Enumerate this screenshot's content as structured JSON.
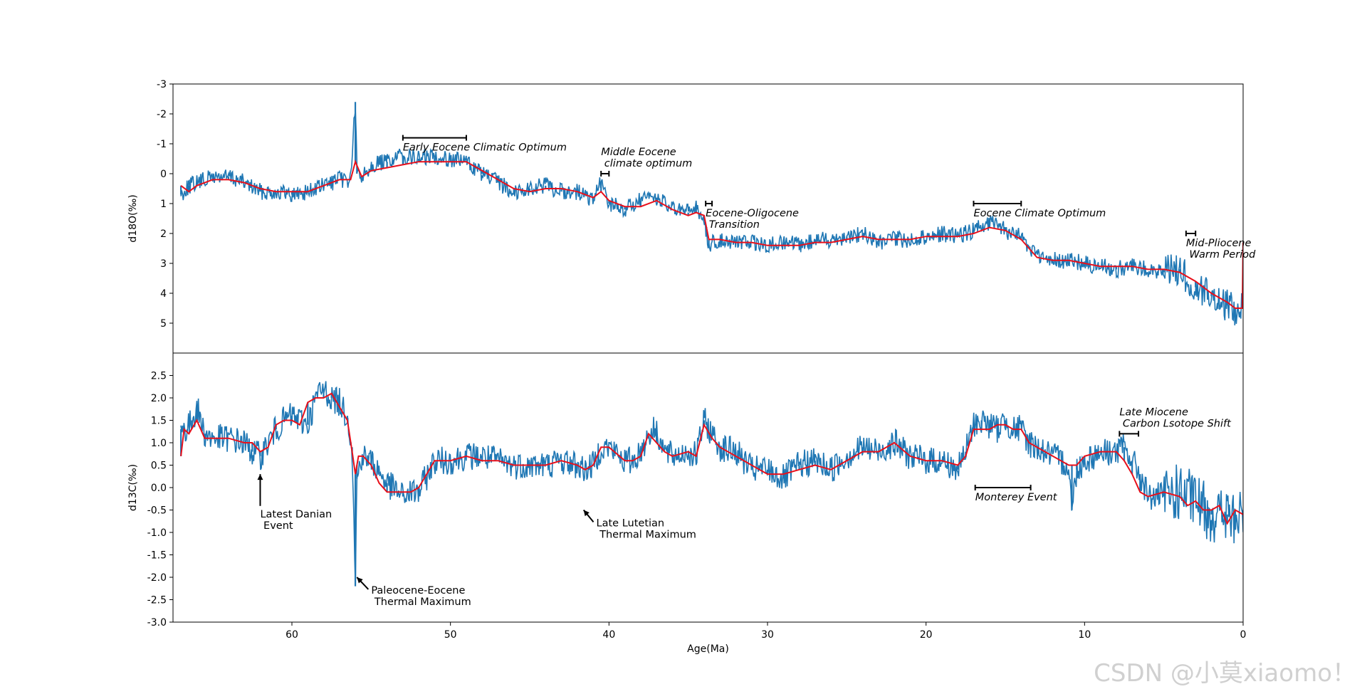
{
  "watermark": "CSDN @小莫xiaomo！",
  "chart_data": [
    {
      "type": "line",
      "ylabel": "d18O(‰)",
      "xlabel": "",
      "xlim": [
        67.5,
        0
      ],
      "ylim": [
        6,
        -3
      ],
      "y_inverted": true,
      "yticks": [
        -3,
        -2,
        -1,
        0,
        1,
        2,
        3,
        4,
        5
      ],
      "ytick_labels": [
        "-3",
        "-2",
        "-1",
        "0",
        "1",
        "2",
        "3",
        "4",
        "5"
      ],
      "colors": {
        "raw": "#1f77b4",
        "smooth": "#e8101b"
      },
      "series": [
        {
          "role": "raw",
          "x": [
            67,
            66.5,
            66,
            65,
            64,
            63,
            62,
            61,
            60,
            59,
            58,
            57,
            56.3,
            56,
            55.9,
            55.6,
            55,
            54,
            53,
            52,
            51,
            50,
            49,
            48,
            47,
            46,
            45,
            44,
            43,
            42,
            41,
            40.5,
            40,
            39,
            38,
            37,
            36,
            35,
            34.5,
            34,
            33.7,
            33,
            32,
            31,
            30,
            29,
            28,
            27,
            26,
            25,
            24,
            23,
            22,
            21,
            20,
            19,
            18,
            17,
            16,
            15,
            14,
            13,
            12,
            11,
            10,
            9,
            8,
            7,
            6,
            5,
            4,
            3,
            2,
            1,
            0.5,
            0
          ],
          "y": [
            0.7,
            0.4,
            0.3,
            0.1,
            0.1,
            0.3,
            0.6,
            0.6,
            0.7,
            0.6,
            0.4,
            0.2,
            0.2,
            -2.4,
            0.0,
            0.1,
            -0.3,
            -0.4,
            -0.6,
            -0.5,
            -0.6,
            -0.5,
            -0.4,
            0.0,
            0.3,
            0.6,
            0.5,
            0.4,
            0.6,
            0.6,
            0.9,
            0.3,
            1.0,
            1.2,
            0.9,
            0.8,
            1.2,
            1.3,
            1.1,
            1.6,
            2.4,
            2.2,
            2.3,
            2.3,
            2.4,
            2.3,
            2.4,
            2.2,
            2.2,
            2.1,
            2.0,
            2.3,
            2.2,
            2.2,
            2.1,
            2.0,
            2.1,
            1.9,
            1.6,
            1.9,
            2.1,
            2.8,
            2.9,
            2.9,
            3.0,
            3.1,
            3.2,
            3.1,
            3.2,
            3.3,
            3.2,
            3.8,
            4.1,
            4.4,
            4.6,
            4.5
          ]
        },
        {
          "role": "smooth",
          "x": [
            67,
            66.5,
            66,
            65,
            64,
            63,
            62,
            61,
            60,
            59,
            58,
            57,
            56.3,
            56,
            55.6,
            55,
            54,
            53,
            52,
            51,
            50,
            49,
            48,
            47,
            46,
            45,
            44,
            43,
            42,
            41,
            40.5,
            40,
            39,
            38,
            37,
            36,
            35,
            34.5,
            34,
            33.7,
            33,
            32,
            31,
            30,
            29,
            28,
            27,
            26,
            25,
            24,
            23,
            22,
            21,
            20,
            19,
            18,
            17,
            16,
            15,
            14,
            13,
            12,
            11,
            10,
            9,
            8,
            7,
            6,
            5,
            4,
            3,
            2,
            1,
            0.5,
            0.05,
            0
          ],
          "y": [
            0.4,
            0.6,
            0.4,
            0.2,
            0.2,
            0.3,
            0.5,
            0.6,
            0.6,
            0.6,
            0.4,
            0.2,
            0.2,
            -0.4,
            0.1,
            -0.1,
            -0.2,
            -0.3,
            -0.4,
            -0.4,
            -0.4,
            -0.4,
            -0.1,
            0.2,
            0.5,
            0.6,
            0.5,
            0.5,
            0.6,
            0.8,
            0.6,
            0.9,
            1.1,
            1.1,
            0.9,
            1.2,
            1.4,
            1.3,
            1.4,
            2.2,
            2.2,
            2.3,
            2.3,
            2.4,
            2.4,
            2.4,
            2.3,
            2.3,
            2.2,
            2.1,
            2.2,
            2.2,
            2.2,
            2.1,
            2.1,
            2.1,
            2.0,
            1.8,
            1.9,
            2.2,
            2.8,
            2.9,
            2.9,
            3.0,
            3.1,
            3.1,
            3.1,
            3.2,
            3.2,
            3.3,
            3.6,
            4.0,
            4.3,
            4.5,
            4.5,
            2.3
          ]
        }
      ],
      "annotations": [
        {
          "text": "Early Eocene Climatic Optimum",
          "x": 53,
          "y": -1.5,
          "style": "italic",
          "bracket": [
            53,
            49,
            -1.2
          ]
        },
        {
          "text": "Middle Eocene\n climate optimum",
          "x": 40.8,
          "y": 0.1,
          "style": "italic",
          "bracket": [
            40.5,
            40.0,
            0.0
          ]
        },
        {
          "text": "Eocene-Oligocene\n Transition",
          "x": 34.2,
          "y": 0.7,
          "style": "italic",
          "bracket": [
            33.9,
            33.5,
            1.0
          ]
        },
        {
          "text": "Eocene Climate Optimum",
          "x": 17,
          "y": 0.5,
          "style": "italic",
          "bracket": [
            17,
            14,
            1.0
          ]
        },
        {
          "text": "Mid-Pliocene\n Warm Period",
          "x": 4,
          "y": 1.4,
          "style": "italic",
          "bracket": [
            3.6,
            3.0,
            2.0
          ]
        }
      ]
    },
    {
      "type": "line",
      "ylabel": "d13C(‰)",
      "xlabel": "Age(Ma)",
      "xlim": [
        67.5,
        0
      ],
      "ylim": [
        -3.0,
        3.0
      ],
      "yticks": [
        2.5,
        2.0,
        1.5,
        1.0,
        0.5,
        0.0,
        -0.5,
        -1.0,
        -1.5,
        -2.0,
        -2.5,
        -3.0
      ],
      "ytick_labels": [
        "2.5",
        "2.0",
        "1.5",
        "1.0",
        "0.5",
        "0.0",
        "-0.5",
        "-1.0",
        "-1.5",
        "-2.0",
        "-2.5",
        "-3.0"
      ],
      "xticks": [
        60,
        50,
        40,
        30,
        20,
        10,
        0
      ],
      "xtick_labels": [
        "60",
        "50",
        "40",
        "30",
        "20",
        "10",
        "0"
      ],
      "colors": {
        "raw": "#1f77b4",
        "smooth": "#e8101b"
      },
      "series": [
        {
          "role": "raw",
          "x": [
            67,
            66.6,
            66.3,
            66,
            65.5,
            65,
            64,
            63,
            62.5,
            62,
            61,
            60.5,
            60,
            59,
            58.5,
            58,
            57.5,
            57,
            56.5,
            56.2,
            56,
            55.9,
            55.6,
            55,
            54,
            53,
            52.5,
            52,
            51,
            50,
            49,
            48,
            47,
            46,
            45,
            44,
            43,
            42,
            41.5,
            41,
            40.5,
            40,
            39,
            38.5,
            38,
            37.5,
            37,
            36.5,
            36,
            35,
            34.5,
            34,
            33.5,
            33,
            32,
            31,
            30,
            29,
            28,
            27,
            26,
            25,
            24,
            23,
            22,
            21,
            20,
            19,
            18,
            17.5,
            17,
            16.5,
            16,
            15.5,
            15,
            14.5,
            14,
            13.5,
            13,
            12,
            11,
            10.8,
            10.5,
            10,
            9,
            8,
            7.5,
            7,
            6.5,
            6,
            5,
            4,
            3,
            2,
            1,
            0.5,
            0
          ],
          "y": [
            1.3,
            1.3,
            1.5,
            1.8,
            1.2,
            1.1,
            1.1,
            1.0,
            0.8,
            0.7,
            1.3,
            1.5,
            1.6,
            1.4,
            2.0,
            2.2,
            2.0,
            1.9,
            1.6,
            0.9,
            -2.2,
            0.2,
            0.7,
            0.6,
            0.1,
            -0.2,
            -0.1,
            -0.1,
            0.6,
            0.6,
            0.7,
            0.7,
            0.6,
            0.5,
            0.5,
            0.5,
            0.6,
            0.5,
            0.4,
            0.5,
            0.9,
            0.9,
            0.6,
            0.6,
            0.8,
            1.2,
            1.3,
            0.8,
            0.7,
            0.8,
            0.7,
            1.5,
            1.2,
            0.9,
            0.8,
            0.4,
            0.4,
            0.2,
            0.5,
            0.6,
            0.4,
            0.7,
            0.9,
            0.8,
            1.0,
            0.7,
            0.6,
            0.6,
            0.4,
            0.8,
            1.4,
            1.5,
            1.4,
            1.3,
            1.5,
            1.3,
            1.3,
            1.0,
            0.9,
            0.7,
            0.5,
            -0.5,
            0.4,
            0.6,
            0.8,
            0.8,
            0.9,
            0.6,
            0.3,
            -0.2,
            -0.2,
            -0.1,
            -0.3,
            -0.6,
            -0.6,
            -0.8,
            -0.5
          ]
        },
        {
          "role": "smooth",
          "x": [
            67,
            66.8,
            66.5,
            66,
            65.5,
            65,
            64,
            63,
            62.5,
            62,
            61.5,
            61,
            60.5,
            60,
            59.5,
            59,
            58.5,
            58,
            57.5,
            57,
            56.5,
            56.2,
            56,
            55.8,
            55.5,
            55,
            54.5,
            54,
            53,
            52.5,
            52,
            51.5,
            51,
            50,
            49,
            48,
            47,
            46,
            45,
            44,
            43,
            42,
            41.5,
            41,
            40.5,
            40,
            39,
            38.5,
            38,
            37.5,
            37,
            36.5,
            36,
            35,
            34.5,
            34,
            33.5,
            33,
            32,
            31,
            30,
            29,
            28,
            27,
            26,
            25,
            24,
            23,
            22,
            21,
            20,
            19,
            18,
            17.5,
            17,
            16.5,
            16,
            15.5,
            15,
            14.5,
            14,
            13.5,
            13,
            12,
            11,
            10.5,
            10,
            9,
            8,
            7.5,
            7,
            6.5,
            6,
            5,
            4,
            3.5,
            3,
            2.5,
            2,
            1.5,
            1,
            0.5,
            0
          ],
          "y": [
            0.7,
            1.3,
            1.2,
            1.5,
            1.1,
            1.1,
            1.1,
            1.0,
            1.0,
            0.8,
            0.9,
            1.4,
            1.5,
            1.5,
            1.4,
            1.9,
            2.0,
            2.0,
            2.1,
            1.8,
            1.5,
            0.8,
            0.3,
            0.7,
            0.7,
            0.5,
            0.1,
            -0.1,
            -0.1,
            -0.1,
            0.0,
            0.3,
            0.6,
            0.6,
            0.7,
            0.6,
            0.6,
            0.5,
            0.5,
            0.5,
            0.6,
            0.5,
            0.4,
            0.5,
            0.9,
            0.9,
            0.6,
            0.6,
            0.7,
            1.2,
            1.0,
            0.8,
            0.7,
            0.8,
            0.7,
            1.4,
            1.1,
            0.9,
            0.7,
            0.5,
            0.3,
            0.3,
            0.4,
            0.5,
            0.4,
            0.6,
            0.8,
            0.8,
            1.0,
            0.7,
            0.6,
            0.6,
            0.5,
            0.7,
            1.3,
            1.3,
            1.3,
            1.4,
            1.4,
            1.3,
            1.3,
            1.0,
            0.9,
            0.7,
            0.5,
            0.5,
            0.7,
            0.8,
            0.8,
            0.6,
            0.3,
            -0.1,
            -0.2,
            -0.1,
            -0.2,
            -0.4,
            -0.3,
            -0.5,
            -0.5,
            -0.4,
            -0.8,
            -0.5,
            -0.6
          ]
        }
      ],
      "annotations": [
        {
          "text": "Latest Danian\n Event",
          "x": 62.0,
          "y": -0.6,
          "arrow_to": [
            62.0,
            0.3
          ]
        },
        {
          "text": "Paleocene-Eocene\n Thermal Maximum",
          "x": 55.0,
          "y": -2.3,
          "arrow_to": [
            55.9,
            -2.0
          ]
        },
        {
          "text": "Late Lutetian\n Thermal Maximum",
          "x": 40.8,
          "y": -0.8,
          "arrow_to": [
            41.6,
            -0.5
          ]
        },
        {
          "text": "Monterey Event",
          "x": 16.9,
          "y": -0.3,
          "style": "italic",
          "bracket": [
            16.9,
            13.4,
            0.0
          ]
        },
        {
          "text": "Late Miocene\n Carbon Lsotope Shift",
          "x": 7.8,
          "y": 1.5,
          "style": "italic",
          "bracket": [
            7.8,
            6.6,
            1.2
          ]
        }
      ]
    }
  ]
}
